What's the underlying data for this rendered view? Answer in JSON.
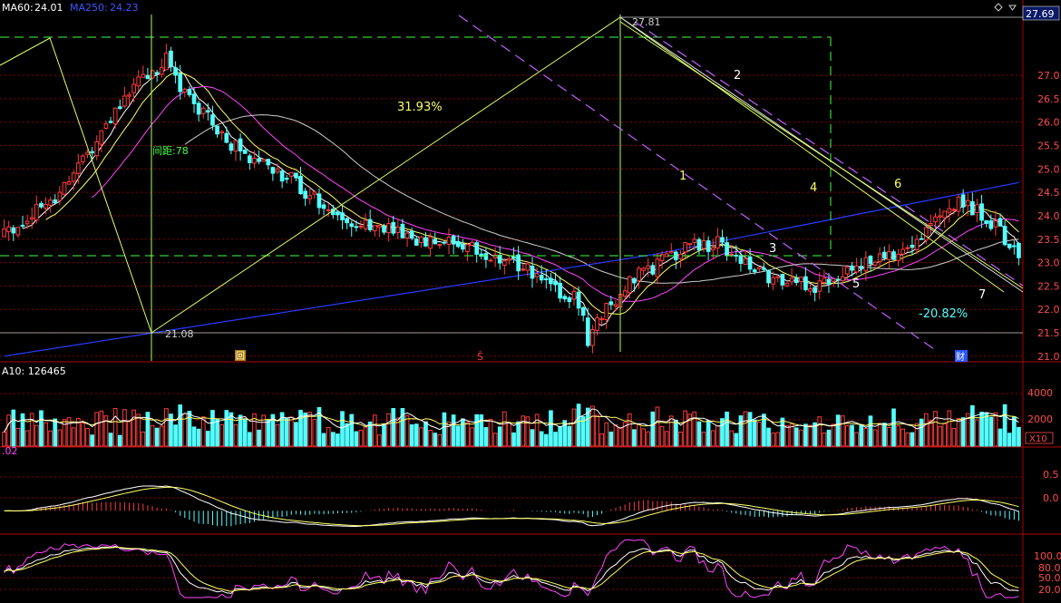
{
  "header": {
    "ma60_label": "MA60:",
    "ma60_value": "24.01",
    "ma250_label": "MA250:",
    "ma250_value": "24.23"
  },
  "price_axis": {
    "last_price": "27.69",
    "ticks": [
      "27.0",
      "26.5",
      "26.0",
      "25.5",
      "25.0",
      "24.5",
      "24.0",
      "23.5",
      "23.0",
      "22.5",
      "22.0",
      "21.5",
      "21.0"
    ],
    "range": [
      20.9,
      28.3
    ]
  },
  "annotations": {
    "high_label": "27.81",
    "low_label": "21.08",
    "gain_label": "31.93%",
    "drop_label": "-20.82%",
    "interval_label": "间距:78",
    "wave_1": "1",
    "wave_2": "2",
    "wave_3": "3",
    "wave_4": "4",
    "wave_5": "5",
    "wave_6": "6",
    "wave_7": "7",
    "marker_hui": "回",
    "marker_s": "Ŝ",
    "marker_cai": "财"
  },
  "volume_panel": {
    "label": "A10: 126465",
    "ticks": [
      "4000",
      "2000"
    ],
    "unit_badge": "X10"
  },
  "macd_panel": {
    "label": ".02",
    "ticks": [
      "0.5",
      "0.0"
    ]
  },
  "kdj_panel": {
    "ticks": [
      "100.0",
      "80.0",
      "50.0",
      "20.0"
    ]
  },
  "colors": {
    "up": "#ff3b3b",
    "down": "#54ffff",
    "ma5": "#ffffff",
    "ma10": "#ffff66",
    "ma20": "#ff44ff",
    "ma60": "#00ff00",
    "ma250": "#2a3bff",
    "grid": "#8b0000",
    "axis_text": "#ff4a4a",
    "trend": "#c060ff"
  },
  "chart_data": {
    "type": "candlestick",
    "x_count": 220,
    "price_ylim": [
      20.9,
      28.3
    ],
    "volume_ylim": [
      0,
      5000
    ],
    "macd_ylim": [
      -0.35,
      0.9
    ],
    "kdj_ylim": [
      0,
      110
    ],
    "price_path": [
      [
        0,
        23.6
      ],
      [
        10,
        24.3
      ],
      [
        20,
        25.6
      ],
      [
        28,
        26.8
      ],
      [
        35,
        27.3
      ],
      [
        40,
        26.5
      ],
      [
        48,
        25.6
      ],
      [
        60,
        24.9
      ],
      [
        72,
        24.0
      ],
      [
        85,
        23.6
      ],
      [
        100,
        23.3
      ],
      [
        112,
        22.9
      ],
      [
        120,
        22.3
      ],
      [
        124,
        22.2
      ],
      [
        126,
        21.25
      ],
      [
        130,
        22.1
      ],
      [
        138,
        22.8
      ],
      [
        148,
        23.4
      ],
      [
        155,
        23.4
      ],
      [
        165,
        22.6
      ],
      [
        175,
        22.5
      ],
      [
        180,
        22.8
      ],
      [
        188,
        23.0
      ],
      [
        195,
        23.4
      ],
      [
        201,
        23.9
      ],
      [
        205,
        24.3
      ],
      [
        212,
        24.0
      ],
      [
        216,
        23.5
      ],
      [
        220,
        23.1
      ]
    ]
  }
}
